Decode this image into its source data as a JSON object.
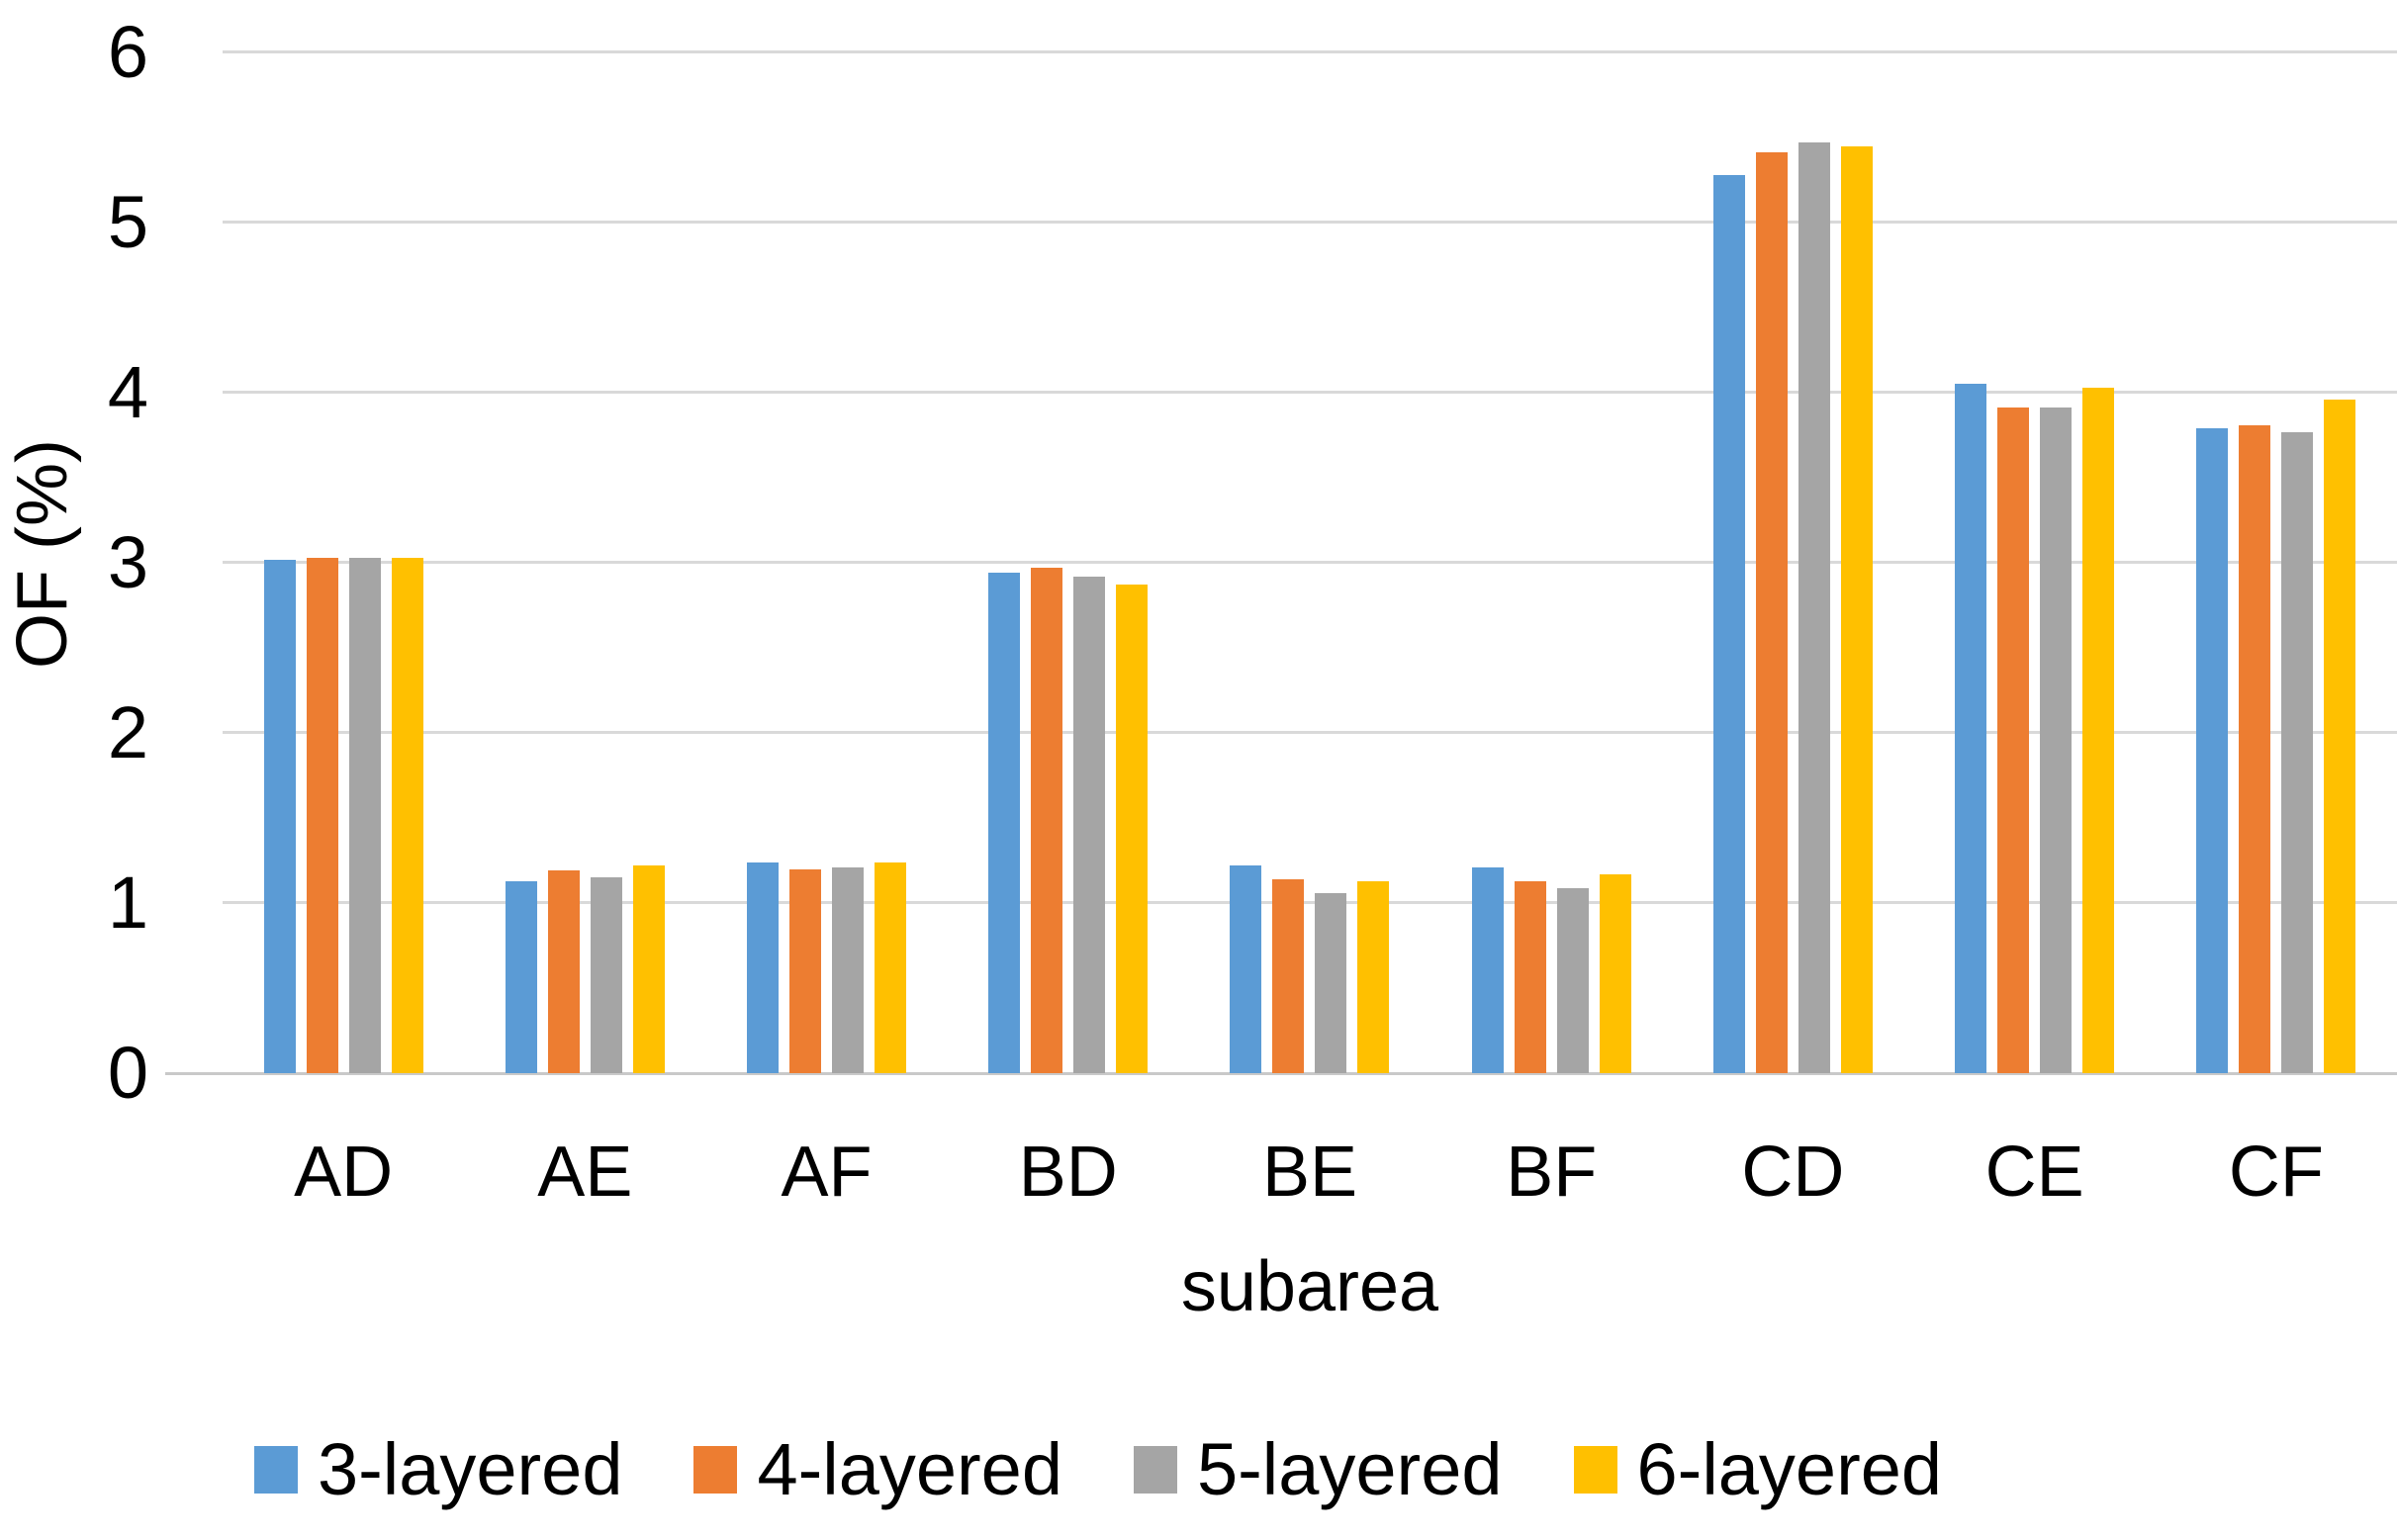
{
  "chart_data": {
    "type": "bar",
    "title": "",
    "xlabel": "subarea",
    "ylabel": "OF (%)",
    "categories": [
      "AD",
      "AE",
      "AF",
      "BD",
      "BE",
      "BF",
      "CD",
      "CE",
      "CF"
    ],
    "series": [
      {
        "name": "3-layered",
        "color": "#5B9BD5",
        "values": [
          3.02,
          1.13,
          1.24,
          2.94,
          1.22,
          1.21,
          5.28,
          4.05,
          3.79
        ]
      },
      {
        "name": "4-layered",
        "color": "#ED7D31",
        "values": [
          3.03,
          1.19,
          1.2,
          2.97,
          1.14,
          1.13,
          5.41,
          3.91,
          3.81
        ]
      },
      {
        "name": "5-layered",
        "color": "#A5A5A5",
        "values": [
          3.03,
          1.15,
          1.21,
          2.92,
          1.06,
          1.09,
          5.47,
          3.91,
          3.77
        ]
      },
      {
        "name": "6-layered",
        "color": "#FFC000",
        "values": [
          3.03,
          1.22,
          1.24,
          2.87,
          1.13,
          1.17,
          5.45,
          4.03,
          3.96
        ]
      }
    ],
    "ylim": [
      0,
      6
    ],
    "yticks": [
      0,
      1,
      2,
      3,
      4,
      5,
      6
    ],
    "grid": true,
    "legend_position": "bottom",
    "colors": {
      "background": "#FFFFFF",
      "text": "#000000",
      "gridline": "#D9D9D9",
      "axis_line": "#C9C9C9"
    }
  }
}
